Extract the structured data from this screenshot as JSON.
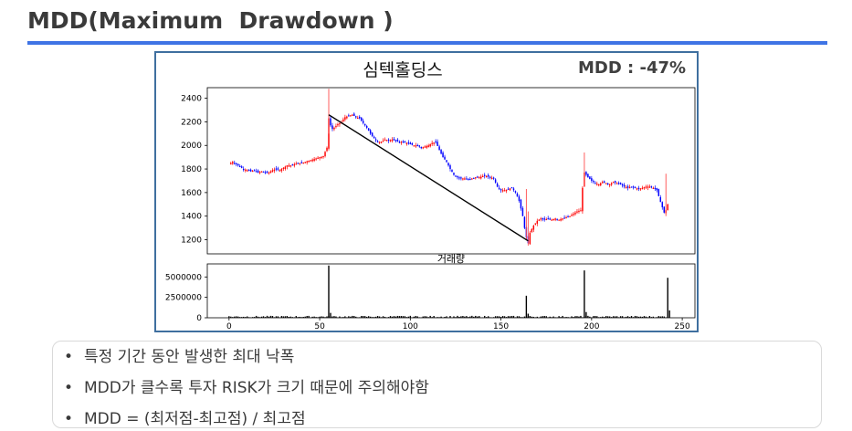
{
  "page": {
    "title": "MDD(Maximum  Drawdown )",
    "accent_color": "#3f74e5",
    "figure_border_color": "#3f6f9f"
  },
  "figure": {
    "title": "심텍홀딩스",
    "mdd_text": "MDD : -47%"
  },
  "bullets": [
    "특정 기간 동안 발생한 최대 낙폭",
    "MDD가 클수록 투자 RISK가 크기 때문에 주의해야함",
    "MDD = (최저점-최고점) / 최고점"
  ],
  "chart_data": [
    {
      "type": "candlestick",
      "title": "심텍홀딩스",
      "x_ticks": [
        0,
        50,
        100,
        150,
        200,
        250
      ],
      "y_ticks": [
        1200,
        1400,
        1600,
        1800,
        2000,
        2200,
        2400
      ],
      "xlim": [
        -12,
        257
      ],
      "ylim": [
        1080,
        2490
      ],
      "up_color": "#ff0000",
      "down_color": "#0000ff",
      "grid": false,
      "close_path": [
        [
          0,
          1840
        ],
        [
          2,
          1860
        ],
        [
          4,
          1840
        ],
        [
          6,
          1820
        ],
        [
          8,
          1800
        ],
        [
          10,
          1790
        ],
        [
          12,
          1780
        ],
        [
          14,
          1790
        ],
        [
          16,
          1770
        ],
        [
          18,
          1780
        ],
        [
          20,
          1770
        ],
        [
          22,
          1770
        ],
        [
          24,
          1790
        ],
        [
          26,
          1800
        ],
        [
          28,
          1790
        ],
        [
          30,
          1810
        ],
        [
          32,
          1830
        ],
        [
          34,
          1830
        ],
        [
          36,
          1840
        ],
        [
          38,
          1850
        ],
        [
          40,
          1850
        ],
        [
          42,
          1860
        ],
        [
          44,
          1870
        ],
        [
          46,
          1880
        ],
        [
          48,
          1890
        ],
        [
          50,
          1900
        ],
        [
          52,
          1910
        ],
        [
          54,
          1980
        ],
        [
          55,
          2230
        ],
        [
          56,
          2170
        ],
        [
          57,
          2140
        ],
        [
          58,
          2150
        ],
        [
          60,
          2180
        ],
        [
          62,
          2200
        ],
        [
          64,
          2240
        ],
        [
          66,
          2250
        ],
        [
          68,
          2260
        ],
        [
          70,
          2240
        ],
        [
          72,
          2230
        ],
        [
          74,
          2190
        ],
        [
          76,
          2150
        ],
        [
          78,
          2100
        ],
        [
          80,
          2060
        ],
        [
          82,
          2030
        ],
        [
          84,
          2030
        ],
        [
          86,
          2050
        ],
        [
          88,
          2040
        ],
        [
          90,
          2050
        ],
        [
          92,
          2040
        ],
        [
          94,
          2030
        ],
        [
          96,
          2030
        ],
        [
          98,
          2020
        ],
        [
          100,
          2010
        ],
        [
          102,
          2000
        ],
        [
          104,
          2000
        ],
        [
          106,
          1980
        ],
        [
          108,
          1990
        ],
        [
          110,
          2000
        ],
        [
          112,
          2020
        ],
        [
          114,
          2030
        ],
        [
          116,
          1960
        ],
        [
          118,
          1900
        ],
        [
          120,
          1860
        ],
        [
          122,
          1800
        ],
        [
          124,
          1750
        ],
        [
          126,
          1730
        ],
        [
          128,
          1720
        ],
        [
          130,
          1720
        ],
        [
          132,
          1710
        ],
        [
          134,
          1720
        ],
        [
          136,
          1730
        ],
        [
          138,
          1730
        ],
        [
          140,
          1740
        ],
        [
          142,
          1740
        ],
        [
          144,
          1730
        ],
        [
          146,
          1720
        ],
        [
          148,
          1650
        ],
        [
          150,
          1620
        ],
        [
          152,
          1620
        ],
        [
          154,
          1630
        ],
        [
          156,
          1640
        ],
        [
          158,
          1600
        ],
        [
          160,
          1530
        ],
        [
          162,
          1400
        ],
        [
          163,
          1300
        ],
        [
          164,
          1220
        ],
        [
          165,
          1170
        ],
        [
          166,
          1260
        ],
        [
          168,
          1320
        ],
        [
          170,
          1360
        ],
        [
          172,
          1380
        ],
        [
          174,
          1370
        ],
        [
          176,
          1380
        ],
        [
          178,
          1370
        ],
        [
          180,
          1380
        ],
        [
          182,
          1370
        ],
        [
          184,
          1380
        ],
        [
          186,
          1390
        ],
        [
          188,
          1400
        ],
        [
          190,
          1420
        ],
        [
          192,
          1440
        ],
        [
          194,
          1450
        ],
        [
          195,
          1640
        ],
        [
          196,
          1770
        ],
        [
          198,
          1730
        ],
        [
          200,
          1700
        ],
        [
          202,
          1680
        ],
        [
          204,
          1670
        ],
        [
          206,
          1690
        ],
        [
          208,
          1680
        ],
        [
          210,
          1670
        ],
        [
          212,
          1690
        ],
        [
          214,
          1680
        ],
        [
          216,
          1670
        ],
        [
          218,
          1650
        ],
        [
          220,
          1640
        ],
        [
          222,
          1650
        ],
        [
          224,
          1640
        ],
        [
          226,
          1630
        ],
        [
          228,
          1640
        ],
        [
          230,
          1650
        ],
        [
          232,
          1650
        ],
        [
          234,
          1640
        ],
        [
          236,
          1620
        ],
        [
          238,
          1520
        ],
        [
          240,
          1430
        ],
        [
          241,
          1450
        ],
        [
          242,
          1500
        ]
      ],
      "drawdown_line": {
        "from": [
          55,
          2260
        ],
        "to": [
          165,
          1190
        ]
      },
      "spikes": [
        {
          "x": 55,
          "high": 2480,
          "low": 2100
        },
        {
          "x": 164,
          "high": 1630,
          "low": 1200
        },
        {
          "x": 165,
          "high": 1440,
          "low": 1150
        },
        {
          "x": 196,
          "high": 1940,
          "low": 1650
        },
        {
          "x": 241,
          "high": 1760,
          "low": 1400
        }
      ]
    },
    {
      "type": "bar",
      "title": "거래량",
      "x_ticks": [
        0,
        50,
        100,
        150,
        200,
        250
      ],
      "y_ticks": [
        0,
        2500000,
        5000000
      ],
      "y_tick_labels": [
        "0",
        "2500000",
        "5000000"
      ],
      "xlim": [
        -12,
        257
      ],
      "ylim": [
        0,
        6600000
      ],
      "color": "#000000",
      "spikes": [
        {
          "x": 55,
          "value": 6400000
        },
        {
          "x": 56,
          "value": 600000
        },
        {
          "x": 164,
          "value": 2700000
        },
        {
          "x": 165,
          "value": 500000
        },
        {
          "x": 196,
          "value": 5800000
        },
        {
          "x": 197,
          "value": 700000
        },
        {
          "x": 242,
          "value": 4900000
        },
        {
          "x": 243,
          "value": 900000
        }
      ],
      "base_volume": 120000
    }
  ]
}
